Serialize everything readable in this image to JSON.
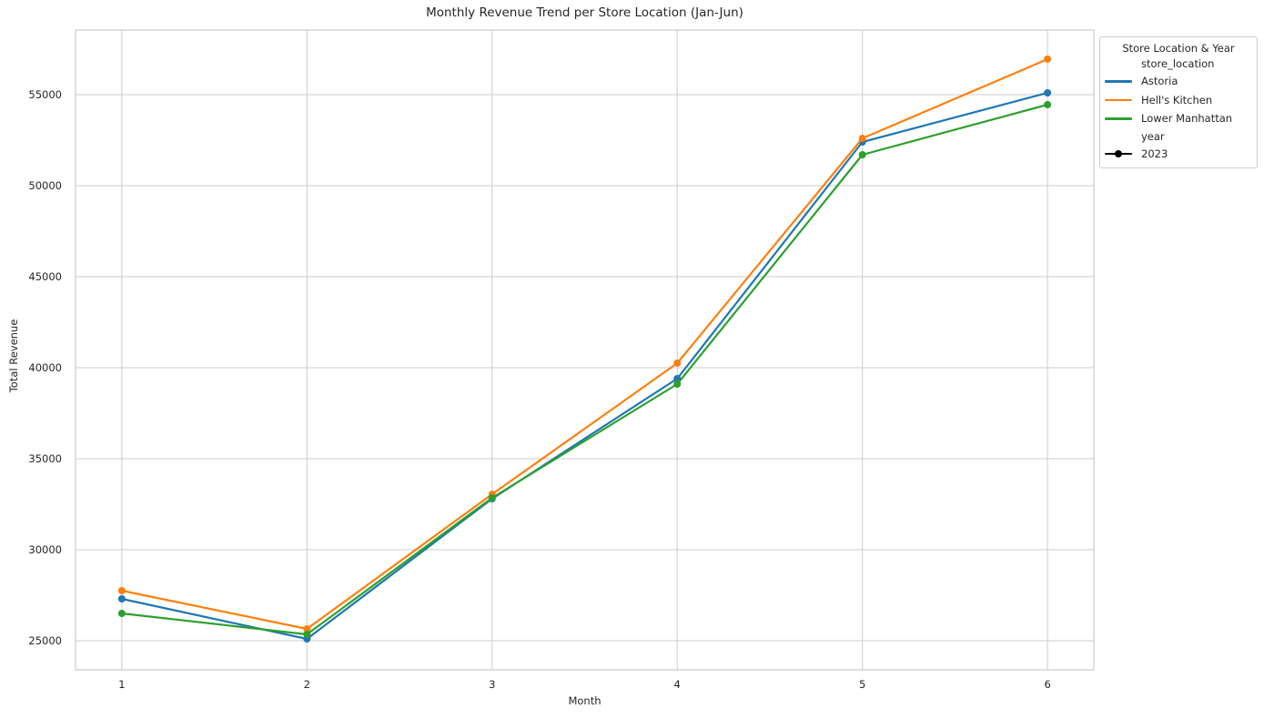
{
  "figure": {
    "title": "Monthly Revenue Trend per Store Location (Jan-Jun)"
  },
  "chart_data": {
    "type": "line",
    "title": "Monthly Revenue Trend per Store Location (Jan-Jun)",
    "xlabel": "Month",
    "ylabel": "Total Revenue",
    "x": [
      1,
      2,
      3,
      4,
      5,
      6
    ],
    "xticks": [
      1,
      2,
      3,
      4,
      5,
      6
    ],
    "yticks": [
      25000,
      30000,
      35000,
      40000,
      45000,
      50000,
      55000
    ],
    "xlim": [
      0.75,
      6.25
    ],
    "ylim": [
      23400,
      58550
    ],
    "grid": true,
    "marker": "circle",
    "series": [
      {
        "name": "Astoria",
        "color": "#1f77b4",
        "values": [
          27300,
          25100,
          32800,
          39400,
          52400,
          55100
        ]
      },
      {
        "name": "Hell's Kitchen",
        "color": "#ff7f0e",
        "values": [
          27750,
          25650,
          33050,
          40250,
          52600,
          56950
        ]
      },
      {
        "name": "Lower Manhattan",
        "color": "#2ca02c",
        "values": [
          26500,
          25350,
          32850,
          39100,
          51700,
          54450
        ]
      }
    ],
    "legend": {
      "position": "outside-upper-right",
      "title": "Store Location & Year",
      "hue_subtitle": "store_location",
      "style_subtitle": "year",
      "style_entries": [
        {
          "label": "2023",
          "color": "#000000",
          "marker": "line-dot"
        }
      ]
    },
    "colors": {
      "grid": "#cdcdcd",
      "spine": "#cccccc",
      "text": "#262626",
      "background": "#ffffff"
    }
  }
}
